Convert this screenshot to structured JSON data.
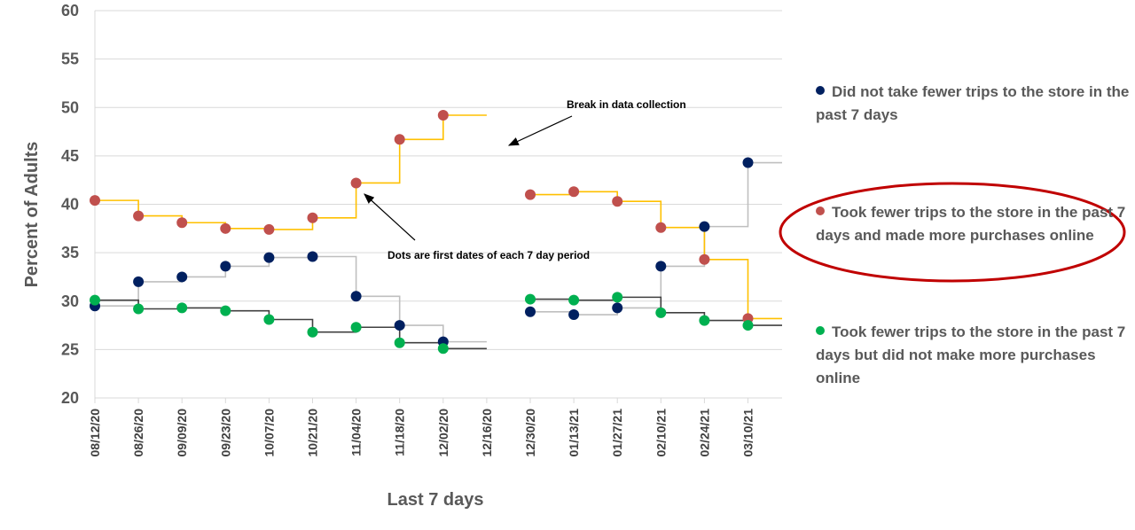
{
  "chart_data": {
    "type": "line",
    "step": true,
    "ylabel": "Percent of Adults",
    "xlabel": "Last 7 days",
    "ylim": [
      20,
      60
    ],
    "yticks": [
      20,
      25,
      30,
      35,
      40,
      45,
      50,
      55,
      60
    ],
    "grid": true,
    "legend_position": "right",
    "categories": [
      "08/12/20",
      "08/26/20",
      "09/09/20",
      "09/23/20",
      "10/07/20",
      "10/21/20",
      "11/04/20",
      "11/18/20",
      "12/02/20",
      "12/16/20",
      "12/30/20",
      "01/13/21",
      "01/27/21",
      "02/10/21",
      "02/24/21",
      "03/10/21"
    ],
    "series": [
      {
        "name": "Did not take fewer trips to the store in the past 7 days",
        "color": "#002060",
        "step_color": "#bfbfbf",
        "values": [
          29.5,
          32.0,
          32.5,
          33.6,
          34.5,
          34.6,
          30.5,
          27.5,
          25.8,
          null,
          28.9,
          28.6,
          29.3,
          33.6,
          37.7,
          44.3
        ]
      },
      {
        "name": "Took fewer trips to the store in the past 7 days and made more purchases online",
        "color": "#c0504d",
        "step_color": "#ffc000",
        "values": [
          40.4,
          38.8,
          38.1,
          37.5,
          37.4,
          38.6,
          42.2,
          46.7,
          49.2,
          null,
          41.0,
          41.3,
          40.3,
          37.6,
          34.3,
          28.2
        ]
      },
      {
        "name": "Took fewer trips to the store in the past 7 days but did not make more purchases online",
        "color": "#00b050",
        "step_color": "#404040",
        "values": [
          30.1,
          29.2,
          29.3,
          29.0,
          28.1,
          26.8,
          27.3,
          25.7,
          25.1,
          null,
          30.2,
          30.1,
          30.4,
          28.8,
          28.0,
          27.5
        ]
      }
    ],
    "annotations": [
      {
        "text": "Break in data collection"
      },
      {
        "text": "Dots are first dates of each 7 day period"
      }
    ],
    "highlight": {
      "series": "Took fewer trips to the store in the past 7 days and made more purchases online",
      "shape": "ellipse",
      "color": "#c00000"
    }
  }
}
